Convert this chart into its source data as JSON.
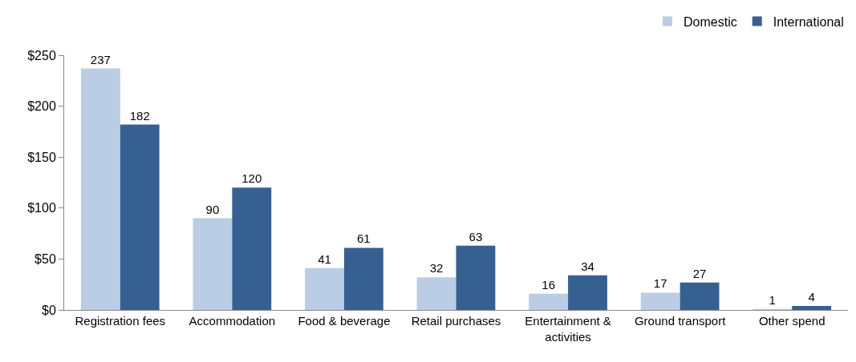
{
  "chart_data": {
    "type": "bar",
    "categories": [
      "Registration fees",
      "Accommodation",
      "Food & beverage",
      "Retail purchases",
      "Entertainment & activities",
      "Ground transport",
      "Other spend"
    ],
    "series": [
      {
        "name": "Domestic",
        "color": "#b9cde5",
        "values": [
          237,
          90,
          41,
          32,
          16,
          17,
          1
        ]
      },
      {
        "name": "International",
        "color": "#366092",
        "values": [
          182,
          120,
          61,
          63,
          34,
          27,
          4
        ]
      }
    ],
    "ylim": [
      0,
      250
    ],
    "yticks": [
      {
        "value": 0,
        "label": "$0"
      },
      {
        "value": 50,
        "label": "$50"
      },
      {
        "value": 100,
        "label": "$100"
      },
      {
        "value": 150,
        "label": "$150"
      },
      {
        "value": 200,
        "label": "$200"
      },
      {
        "value": 250,
        "label": "$250"
      }
    ],
    "grid": false,
    "legend": "top right",
    "data_labels": true
  }
}
